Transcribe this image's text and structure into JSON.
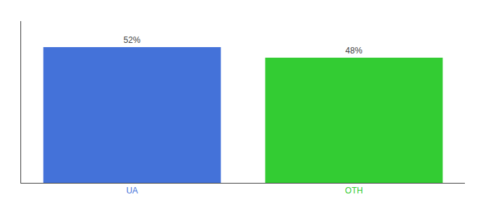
{
  "chart_data": {
    "type": "bar",
    "categories": [
      "UA",
      "OTH"
    ],
    "values": [
      52,
      48
    ],
    "value_labels": [
      "52%",
      "48%"
    ],
    "data_labels": true,
    "colors": [
      "#4472d9",
      "#33cc33"
    ],
    "ylim": [
      0,
      62
    ],
    "tick_labels": "x",
    "grid": false
  }
}
